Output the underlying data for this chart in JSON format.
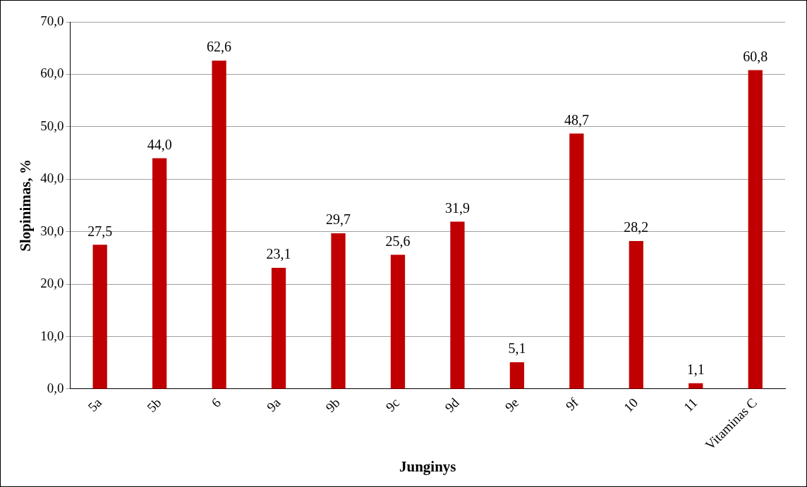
{
  "chart_data": {
    "type": "bar",
    "xlabel": "Junginys",
    "ylabel": "Slopinimas, %",
    "categories": [
      "5a",
      "5b",
      "6",
      "9a",
      "9b",
      "9c",
      "9d",
      "9e",
      "9f",
      "10",
      "11",
      "Vitaminas C"
    ],
    "values": [
      27.5,
      44.0,
      62.6,
      23.1,
      29.7,
      25.6,
      31.9,
      5.1,
      48.7,
      28.2,
      1.1,
      60.8
    ],
    "value_labels": [
      "27,5",
      "44,0",
      "62,6",
      "23,1",
      "29,7",
      "25,6",
      "31,9",
      "5,1",
      "48,7",
      "28,2",
      "1,1",
      "60,8"
    ],
    "color": "#c00000",
    "ylim": [
      0,
      70
    ],
    "yticks": [
      {
        "value": 0,
        "label": "0,0"
      },
      {
        "value": 10,
        "label": "10,0"
      },
      {
        "value": 20,
        "label": "20,0"
      },
      {
        "value": 30,
        "label": "30,0"
      },
      {
        "value": 40,
        "label": "40,0"
      },
      {
        "value": 50,
        "label": "50,0"
      },
      {
        "value": 60,
        "label": "60,0"
      },
      {
        "value": 70,
        "label": "70,0"
      }
    ],
    "grid": "y",
    "legend": false
  }
}
